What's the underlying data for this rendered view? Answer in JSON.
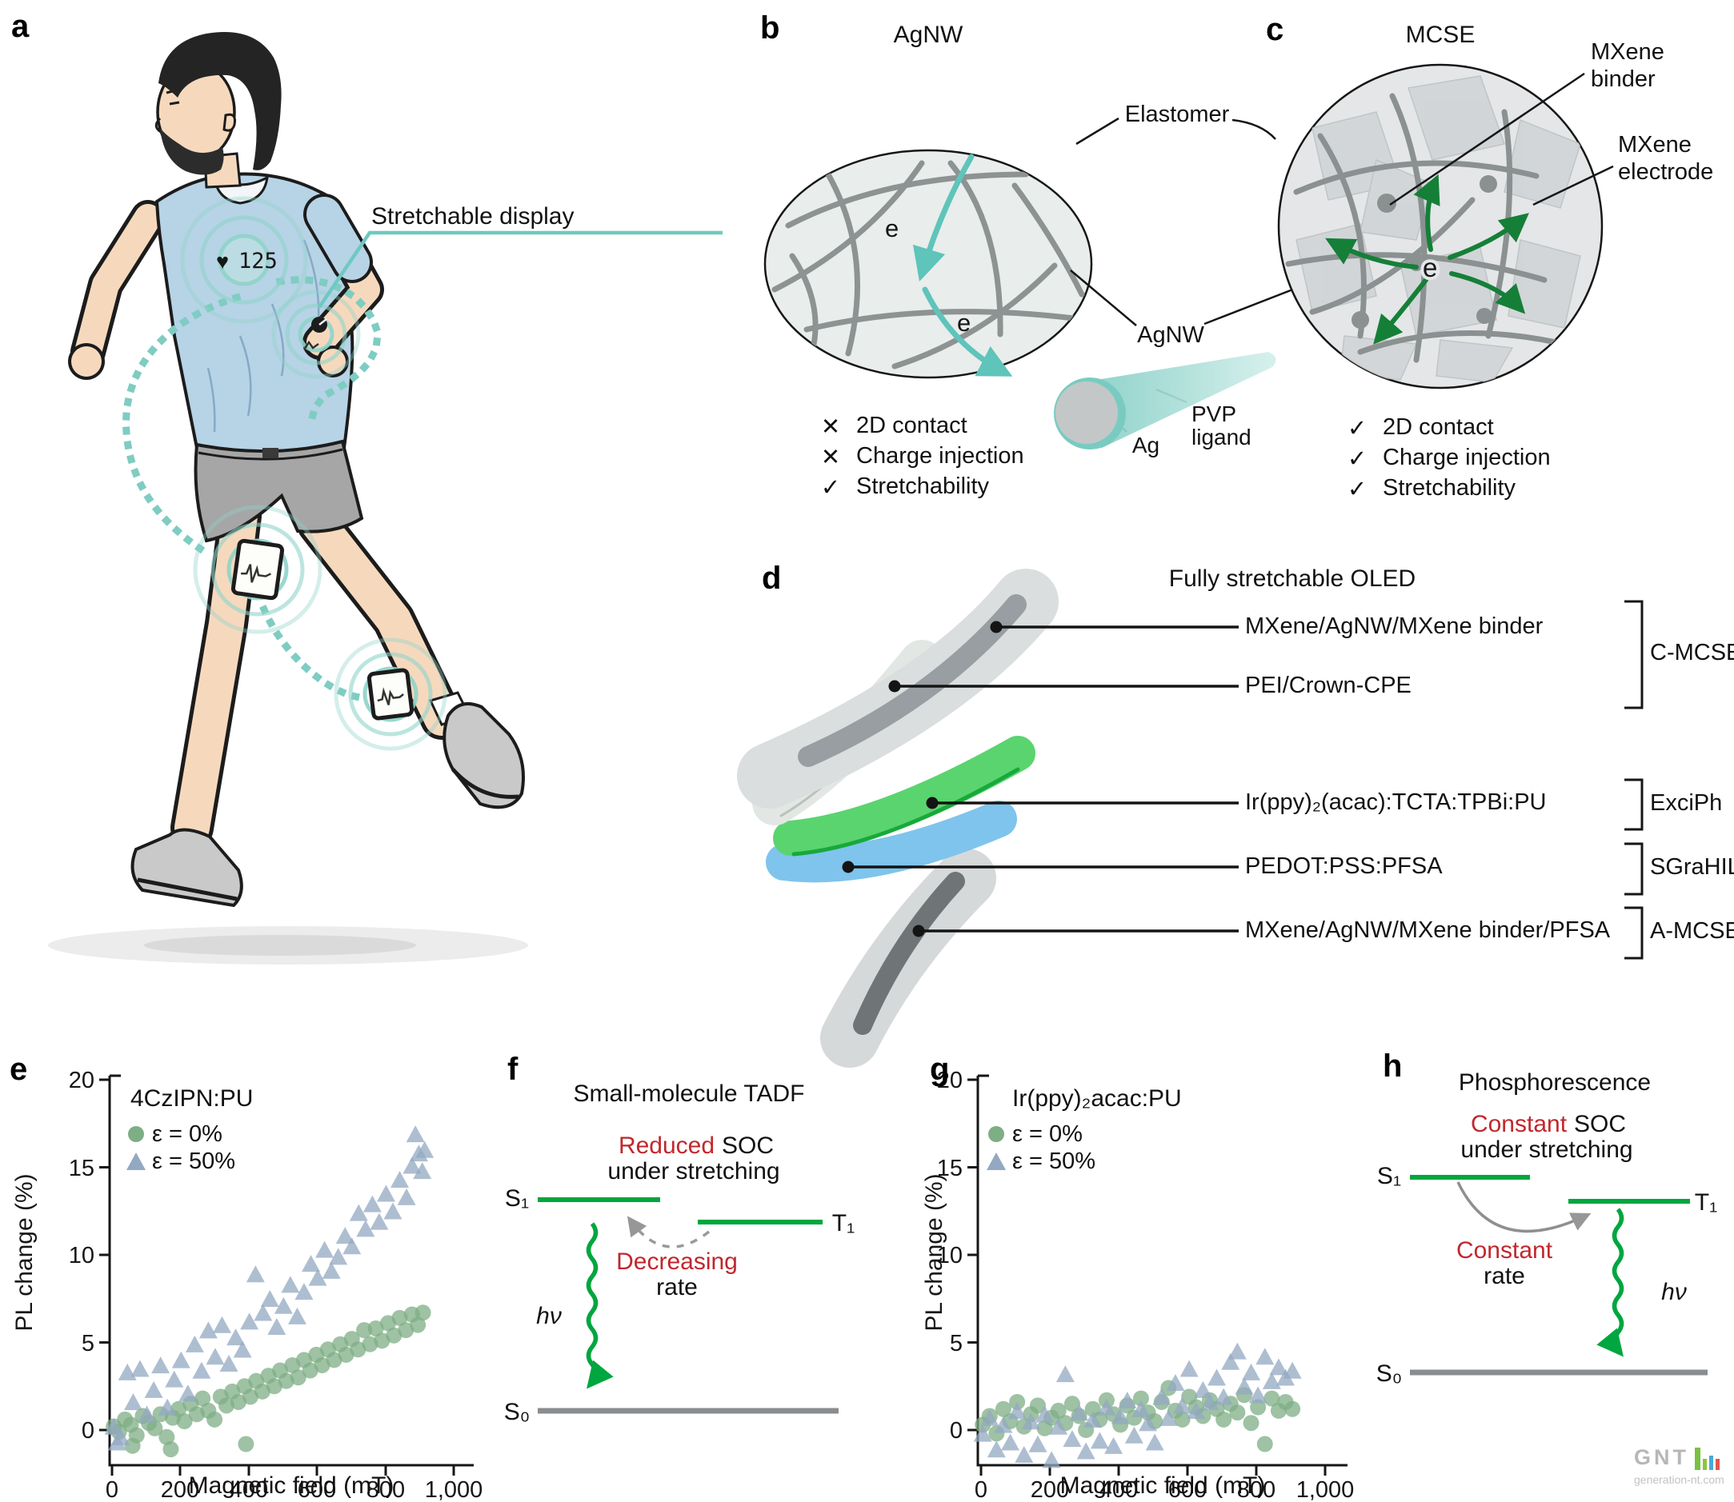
{
  "figure": {
    "panel_a": {
      "label": "a",
      "callout": "Stretchable display",
      "chest_display": {
        "heart_icon": "♥",
        "heart_rate": "125"
      }
    },
    "panel_b": {
      "label": "b",
      "title": "AgNW",
      "electron_labels": [
        "e",
        "e"
      ],
      "annotations": {
        "elastomer": "Elastomer",
        "agnw": "AgNW",
        "pvp_line1": "PVP",
        "pvp_line2": "ligand",
        "ag_core": "Ag"
      },
      "checklist": [
        {
          "mark": "✕",
          "label": "2D contact"
        },
        {
          "mark": "✕",
          "label": "Charge injection"
        },
        {
          "mark": "✓",
          "label": "Stretchability"
        }
      ]
    },
    "panel_c": {
      "label": "c",
      "title": "MCSE",
      "electron_label": "e",
      "annotations": {
        "binder_line1": "MXene",
        "binder_line2": "binder",
        "electrode_line1": "MXene",
        "electrode_line2": "electrode"
      },
      "checklist": [
        {
          "mark": "✓",
          "label": "2D contact"
        },
        {
          "mark": "✓",
          "label": "Charge injection"
        },
        {
          "mark": "✓",
          "label": "Stretchability"
        }
      ]
    },
    "panel_d": {
      "label": "d",
      "title": "Fully stretchable OLED",
      "layers": [
        {
          "name": "MXene/AgNW/MXene binder"
        },
        {
          "name": "PEI/Crown-CPE"
        },
        {
          "name": "Ir(ppy)₂(acac):TCTA:TPBi:PU"
        },
        {
          "name": "PEDOT:PSS:PFSA"
        },
        {
          "name": "MXene/AgNW/MXene binder/PFSA"
        }
      ],
      "brackets": [
        {
          "name": "C-MCSE"
        },
        {
          "name": "ExciPh"
        },
        {
          "name": "SGraHIL"
        },
        {
          "name": "A-MCSE"
        }
      ]
    },
    "panel_e_label": "e",
    "panel_g_label": "g",
    "panel_f": {
      "label": "f",
      "title": "Small-molecule TADF",
      "soc_highlight": "Reduced",
      "soc_rest": "SOC",
      "soc_line2": "under stretching",
      "rate_highlight": "Decreasing",
      "rate_rest": "rate",
      "levels": {
        "s1": "S₁",
        "t1": "T₁",
        "s0": "S₀"
      },
      "photon": "hν"
    },
    "panel_h": {
      "label": "h",
      "title": "Phosphorescence",
      "soc_highlight": "Constant",
      "soc_rest": "SOC",
      "soc_line2": "under stretching",
      "rate_highlight": "Constant",
      "rate_rest": "rate",
      "levels": {
        "s1": "S₁",
        "t1": "T₁",
        "s0": "S₀"
      },
      "photon": "hν"
    }
  },
  "watermark": {
    "logo": "GNT",
    "site": "generation-nt.com",
    "bar_colors": [
      "#7ac143",
      "#8bc53f",
      "#49a7de",
      "#e2574c"
    ]
  },
  "colors": {
    "accent_teal": "#6fc9c0",
    "green_level": "#00a63f",
    "red_text": "#c1272d",
    "wire_gray": "#8d9292",
    "green_arrow": "#157f38",
    "marker_green": "#7dae84",
    "marker_blue": "#93a8c2"
  },
  "chart_data": [
    {
      "panel": "e",
      "type": "scatter",
      "title": "4CzIPN:PU",
      "xlabel": "Magnetic field (mT)",
      "ylabel": "PL change (%)",
      "xlim": [
        0,
        1000
      ],
      "ylim": [
        -2,
        20
      ],
      "yticks": [
        0,
        5,
        10,
        15,
        20
      ],
      "ytick_labels": [
        "0",
        "5",
        "10",
        "15",
        "20"
      ],
      "xticks": [
        0,
        200,
        400,
        600,
        800,
        1000
      ],
      "xtick_labels": [
        "0",
        "200",
        "400",
        "600",
        "800",
        "1,000"
      ],
      "grid": false,
      "legend_position": "upper-left",
      "series": [
        {
          "name": "ε = 0%",
          "marker": "circle",
          "color": "#7dae84",
          "points": [
            [
              5,
              0.2
            ],
            [
              20,
              -0.1
            ],
            [
              38,
              0.6
            ],
            [
              55,
              0.3
            ],
            [
              60,
              -0.9
            ],
            [
              72,
              -0.3
            ],
            [
              90,
              0.8
            ],
            [
              108,
              0.4
            ],
            [
              125,
              0.1
            ],
            [
              142,
              0.9
            ],
            [
              160,
              -0.4
            ],
            [
              172,
              -1.1
            ],
            [
              178,
              0.7
            ],
            [
              195,
              1.2
            ],
            [
              212,
              0.5
            ],
            [
              230,
              1.5
            ],
            [
              248,
              0.9
            ],
            [
              265,
              1.8
            ],
            [
              282,
              1.1
            ],
            [
              300,
              0.6
            ],
            [
              318,
              1.9
            ],
            [
              335,
              1.4
            ],
            [
              352,
              2.2
            ],
            [
              370,
              1.6
            ],
            [
              388,
              2.5
            ],
            [
              392,
              -0.8
            ],
            [
              405,
              1.9
            ],
            [
              422,
              2.8
            ],
            [
              440,
              2.2
            ],
            [
              458,
              3.1
            ],
            [
              475,
              2.5
            ],
            [
              492,
              3.4
            ],
            [
              510,
              2.8
            ],
            [
              528,
              3.7
            ],
            [
              545,
              3.0
            ],
            [
              562,
              4.0
            ],
            [
              580,
              3.4
            ],
            [
              598,
              4.3
            ],
            [
              615,
              3.7
            ],
            [
              632,
              4.6
            ],
            [
              650,
              4.0
            ],
            [
              668,
              4.9
            ],
            [
              685,
              4.3
            ],
            [
              702,
              5.2
            ],
            [
              720,
              4.6
            ],
            [
              738,
              5.7
            ],
            [
              755,
              4.9
            ],
            [
              772,
              5.8
            ],
            [
              790,
              5.1
            ],
            [
              808,
              6.1
            ],
            [
              825,
              5.4
            ],
            [
              842,
              6.4
            ],
            [
              860,
              5.7
            ],
            [
              878,
              6.6
            ],
            [
              895,
              6.0
            ],
            [
              910,
              6.7
            ]
          ]
        },
        {
          "name": "ε = 50%",
          "marker": "triangle",
          "color": "#93a8c2",
          "points": [
            [
              5,
              0.1
            ],
            [
              15,
              -0.8
            ],
            [
              25,
              -0.5
            ],
            [
              45,
              3.2
            ],
            [
              62,
              1.5
            ],
            [
              82,
              3.4
            ],
            [
              102,
              0.8
            ],
            [
              122,
              2.2
            ],
            [
              142,
              3.6
            ],
            [
              162,
              1.2
            ],
            [
              182,
              2.8
            ],
            [
              202,
              3.9
            ],
            [
              222,
              2.0
            ],
            [
              242,
              4.8
            ],
            [
              262,
              3.3
            ],
            [
              282,
              5.6
            ],
            [
              302,
              4.1
            ],
            [
              322,
              5.9
            ],
            [
              342,
              3.7
            ],
            [
              362,
              5.2
            ],
            [
              382,
              4.5
            ],
            [
              402,
              6.1
            ],
            [
              420,
              8.8
            ],
            [
              442,
              6.6
            ],
            [
              462,
              7.4
            ],
            [
              482,
              5.8
            ],
            [
              502,
              7.0
            ],
            [
              522,
              8.2
            ],
            [
              542,
              6.4
            ],
            [
              562,
              7.8
            ],
            [
              582,
              9.4
            ],
            [
              602,
              8.6
            ],
            [
              622,
              10.2
            ],
            [
              642,
              9.0
            ],
            [
              662,
              9.8
            ],
            [
              682,
              11.0
            ],
            [
              702,
              10.4
            ],
            [
              722,
              12.3
            ],
            [
              742,
              11.4
            ],
            [
              762,
              12.8
            ],
            [
              782,
              11.8
            ],
            [
              802,
              13.4
            ],
            [
              822,
              12.4
            ],
            [
              842,
              14.2
            ],
            [
              862,
              13.2
            ],
            [
              878,
              15.0
            ],
            [
              888,
              16.8
            ],
            [
              898,
              15.7
            ],
            [
              908,
              14.7
            ],
            [
              915,
              15.9
            ]
          ]
        }
      ]
    },
    {
      "panel": "g",
      "type": "scatter",
      "title": "Ir(ppy)₂acac:PU",
      "xlabel": "Magnetic field (mT)",
      "ylabel": "PL change (%)",
      "xlim": [
        0,
        1000
      ],
      "ylim": [
        -2,
        20
      ],
      "yticks": [
        0,
        5,
        10,
        15,
        20
      ],
      "ytick_labels": [
        "0",
        "5",
        "10",
        "15",
        "20"
      ],
      "xticks": [
        0,
        200,
        400,
        600,
        800,
        1000
      ],
      "xtick_labels": [
        "0",
        "200",
        "400",
        "600",
        "800",
        "1,000"
      ],
      "grid": false,
      "legend_position": "upper-left",
      "series": [
        {
          "name": "ε = 0%",
          "marker": "circle",
          "color": "#7dae84",
          "points": [
            [
              5,
              0.3
            ],
            [
              25,
              0.8
            ],
            [
              45,
              -0.2
            ],
            [
              65,
              1.2
            ],
            [
              85,
              0.5
            ],
            [
              105,
              1.6
            ],
            [
              125,
              0.2
            ],
            [
              145,
              0.9
            ],
            [
              165,
              1.4
            ],
            [
              185,
              0.1
            ],
            [
              205,
              0.7
            ],
            [
              225,
              1.1
            ],
            [
              245,
              0.4
            ],
            [
              265,
              1.5
            ],
            [
              285,
              0.8
            ],
            [
              305,
              0.0
            ],
            [
              325,
              1.2
            ],
            [
              345,
              0.6
            ],
            [
              365,
              1.7
            ],
            [
              385,
              0.9
            ],
            [
              405,
              0.3
            ],
            [
              425,
              1.4
            ],
            [
              445,
              0.7
            ],
            [
              465,
              1.8
            ],
            [
              485,
              1.0
            ],
            [
              505,
              0.5
            ],
            [
              525,
              1.6
            ],
            [
              545,
              2.4
            ],
            [
              565,
              1.1
            ],
            [
              585,
              0.6
            ],
            [
              605,
              1.9
            ],
            [
              625,
              1.3
            ],
            [
              645,
              0.8
            ],
            [
              665,
              1.7
            ],
            [
              685,
              1.2
            ],
            [
              705,
              0.6
            ],
            [
              725,
              1.5
            ],
            [
              745,
              1.0
            ],
            [
              765,
              2.0
            ],
            [
              785,
              0.4
            ],
            [
              805,
              1.3
            ],
            [
              825,
              -0.8
            ],
            [
              845,
              1.8
            ],
            [
              865,
              1.1
            ],
            [
              885,
              1.6
            ],
            [
              905,
              1.2
            ]
          ]
        },
        {
          "name": "ε = 50%",
          "marker": "triangle",
          "color": "#93a8c2",
          "points": [
            [
              5,
              -0.3
            ],
            [
              25,
              0.6
            ],
            [
              45,
              -1.2
            ],
            [
              65,
              0.2
            ],
            [
              85,
              -0.8
            ],
            [
              105,
              1.0
            ],
            [
              125,
              -1.5
            ],
            [
              145,
              0.4
            ],
            [
              165,
              -0.9
            ],
            [
              185,
              0.8
            ],
            [
              205,
              -1.8
            ],
            [
              225,
              0.1
            ],
            [
              245,
              3.1
            ],
            [
              265,
              -0.6
            ],
            [
              285,
              0.9
            ],
            [
              305,
              -1.3
            ],
            [
              325,
              0.5
            ],
            [
              345,
              -0.7
            ],
            [
              365,
              1.2
            ],
            [
              385,
              -1.0
            ],
            [
              405,
              0.7
            ],
            [
              425,
              1.6
            ],
            [
              445,
              -0.4
            ],
            [
              465,
              1.1
            ],
            [
              485,
              0.3
            ],
            [
              505,
              -0.8
            ],
            [
              525,
              1.8
            ],
            [
              545,
              0.6
            ],
            [
              565,
              2.6
            ],
            [
              585,
              1.3
            ],
            [
              605,
              3.4
            ],
            [
              625,
              1.0
            ],
            [
              645,
              2.2
            ],
            [
              665,
              1.5
            ],
            [
              685,
              2.9
            ],
            [
              705,
              1.8
            ],
            [
              725,
              3.8
            ],
            [
              745,
              4.4
            ],
            [
              765,
              2.4
            ],
            [
              785,
              3.2
            ],
            [
              805,
              1.9
            ],
            [
              825,
              4.1
            ],
            [
              845,
              2.7
            ],
            [
              865,
              3.5
            ],
            [
              885,
              2.9
            ],
            [
              905,
              3.3
            ]
          ]
        }
      ]
    }
  ]
}
